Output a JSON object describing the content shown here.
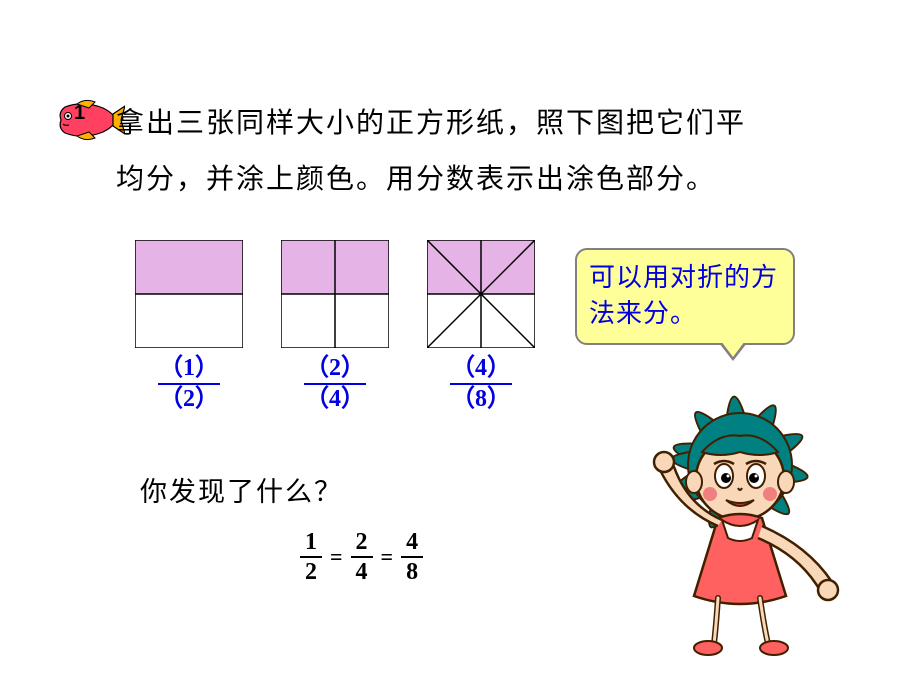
{
  "bullet_number": "1",
  "instruction_line1": "拿出三张同样大小的正方形纸，照下图把它们平",
  "instruction_line2": "均分，并涂上颜色。用分数表示出涂色部分。",
  "squares": {
    "size": 108,
    "fill_color": "#e6b3e6",
    "stroke_color": "#000000",
    "stroke_width": 1.5,
    "items": [
      {
        "type": "half",
        "numerator": "1",
        "denominator": "2"
      },
      {
        "type": "quarter",
        "numerator": "2",
        "denominator": "4"
      },
      {
        "type": "eighth",
        "numerator": "4",
        "denominator": "8"
      }
    ]
  },
  "fraction_color": "#0000e0",
  "question_text": "你发现了什么？",
  "equation": [
    {
      "num": "1",
      "den": "2"
    },
    {
      "num": "2",
      "den": "4"
    },
    {
      "num": "4",
      "den": "8"
    }
  ],
  "speech_text": "可以用对折的方法来分。",
  "speech_bg": "#ffff99",
  "speech_border": "#808080",
  "character": {
    "hair_color": "#008080",
    "skin_color": "#f8d8b8",
    "cheek_color": "#f08080",
    "outfit_color": "#ff6060",
    "outline_color": "#402000"
  },
  "fish": {
    "body_color": "#ff4060",
    "fin_color": "#ffb000",
    "outline_color": "#000000"
  }
}
